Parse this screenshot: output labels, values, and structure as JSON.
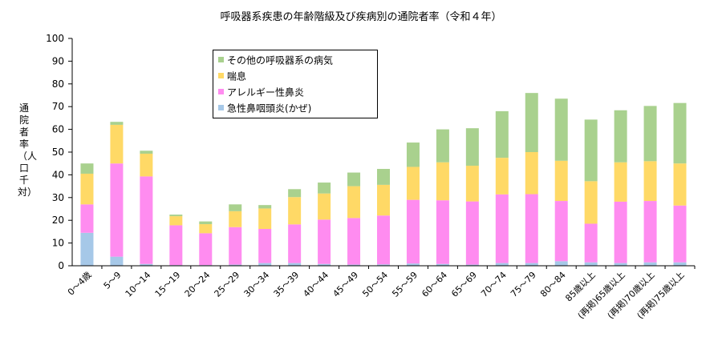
{
  "chart_data": {
    "type": "bar",
    "stacked": true,
    "title": "呼吸器系疾患の年齢階級及び疾病別の通院者率（令和４年）",
    "ylabel": "通院者率（人口千対）",
    "xlabel": "",
    "ylim": [
      0,
      100
    ],
    "yticks": [
      0,
      10,
      20,
      30,
      40,
      50,
      60,
      70,
      80,
      90,
      100
    ],
    "legend_position": "top-center",
    "categories": [
      "0～4歳",
      "5～9",
      "10～14",
      "15～19",
      "20～24",
      "25～29",
      "30～34",
      "35～39",
      "40～44",
      "45～49",
      "50～54",
      "55～59",
      "60～64",
      "65～69",
      "70～74",
      "75～79",
      "80～84",
      "85歳以上",
      "(再掲)65歳以上",
      "(再掲)70歳以上",
      "(再掲)75歳以上"
    ],
    "series": [
      {
        "name": "急性鼻咽頭炎(かぜ)",
        "color": "#a6c8e8",
        "values": [
          14.5,
          4.0,
          0.8,
          0.3,
          0.3,
          0.5,
          1.2,
          1.2,
          0.8,
          0.5,
          0.6,
          1.0,
          0.8,
          0.5,
          1.2,
          1.2,
          2.0,
          1.5,
          1.2,
          1.5,
          1.5
        ]
      },
      {
        "name": "アレルギー性鼻炎",
        "color": "#ff8cf0",
        "values": [
          12.5,
          41.0,
          38.5,
          17.5,
          14.0,
          16.5,
          15.0,
          17.0,
          19.5,
          20.5,
          21.5,
          28.0,
          28.0,
          27.8,
          30.2,
          30.3,
          26.5,
          17.0,
          27.0,
          27.0,
          25.0
        ]
      },
      {
        "name": "喘息",
        "color": "#ffd966",
        "values": [
          13.5,
          17.0,
          10.0,
          4.0,
          4.0,
          7.0,
          9.0,
          12.0,
          11.5,
          14.0,
          13.5,
          14.5,
          16.7,
          15.7,
          16.1,
          18.5,
          17.7,
          18.7,
          17.3,
          17.5,
          18.5
        ]
      },
      {
        "name": "その他の呼吸器系の病気",
        "color": "#a9d18e",
        "values": [
          4.5,
          1.3,
          1.3,
          0.7,
          1.2,
          3.0,
          1.5,
          3.5,
          4.8,
          6.0,
          7.0,
          10.7,
          14.5,
          16.5,
          20.5,
          26.0,
          27.3,
          27.1,
          22.9,
          24.3,
          26.6
        ]
      }
    ]
  },
  "legend_order": [
    3,
    2,
    1,
    0
  ]
}
